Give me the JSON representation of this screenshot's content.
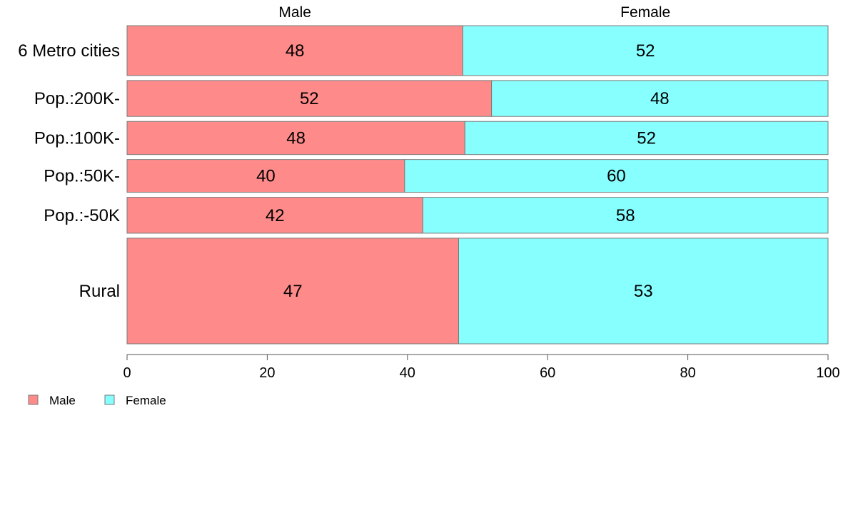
{
  "chart_data": {
    "type": "bar",
    "orientation": "horizontal",
    "stacked": true,
    "normalized": true,
    "categories": [
      "6 Metro cities",
      "Pop.:200K-",
      "Pop.:100K-",
      "Pop.:50K-",
      "Pop.:-50K",
      "Rural"
    ],
    "category_weights": [
      1.43,
      1.03,
      0.95,
      0.94,
      1.03,
      3.03
    ],
    "series": [
      {
        "name": "Male",
        "values": [
          48,
          52,
          48,
          40,
          42,
          47
        ],
        "proportions": [
          47.9,
          52.0,
          48.2,
          39.6,
          42.2,
          47.3
        ],
        "color": "#ff8a8a"
      },
      {
        "name": "Female",
        "values": [
          52,
          48,
          52,
          60,
          58,
          53
        ],
        "proportions": [
          52.1,
          48.0,
          51.8,
          60.4,
          57.8,
          52.7
        ],
        "color": "#88ffff"
      }
    ],
    "column_headers": [
      "Male",
      "Female"
    ],
    "xlim": [
      0,
      100
    ],
    "x_ticks": [
      "0",
      "20",
      "40",
      "60",
      "80",
      "100"
    ],
    "grid": false,
    "legend_position": "bottom-left"
  }
}
